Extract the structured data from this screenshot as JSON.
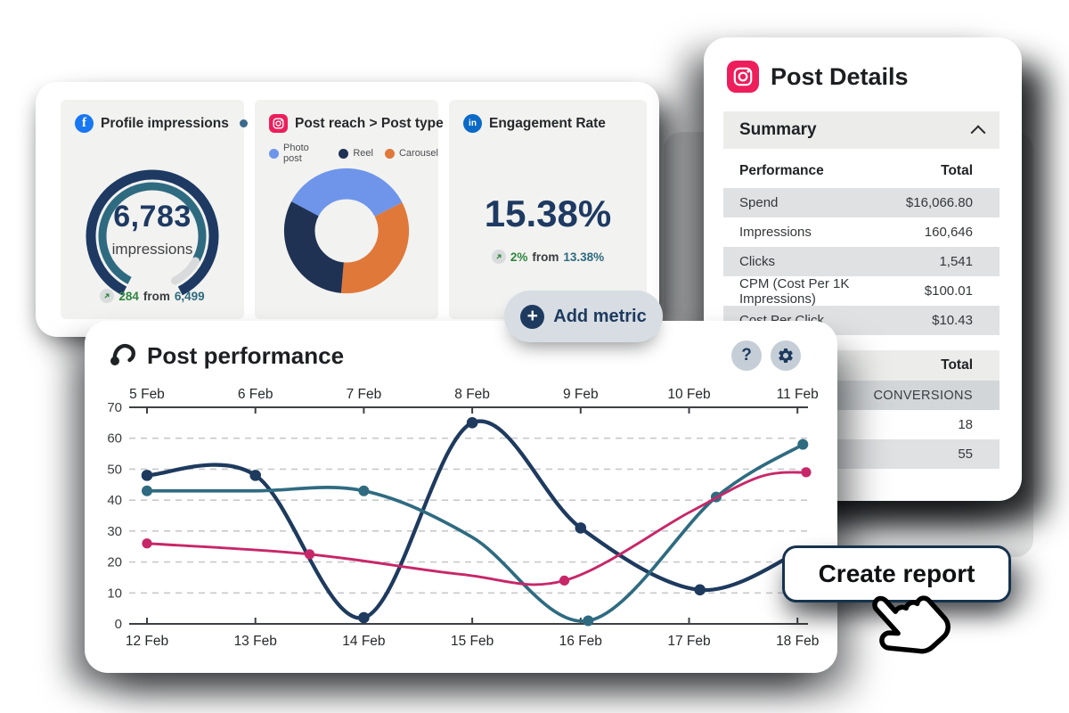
{
  "colors": {
    "navy": "#1E3A5E",
    "teal": "#2F6B80",
    "pink_line": "#C72769",
    "green": "#2F8540",
    "facebook_blue": "#1877F2",
    "linkedin_blue": "#0B69C7",
    "instagram_pink": "#ED1E5B",
    "donut_photo": "#6E95EA",
    "donut_reel": "#1F3254",
    "donut_carousel": "#E0783A",
    "card_gray": "#F2F2F0",
    "row_stripe": "#DFE1E3"
  },
  "icons": {
    "help": "?",
    "plus": "+"
  },
  "metrics": {
    "cards": [
      {
        "title": "Profile impressions",
        "network": "facebook",
        "value": "6,783",
        "unit": "impressions",
        "delta": {
          "amount": "284",
          "word": "from",
          "base": "6,499"
        }
      },
      {
        "title": "Post reach > Post type",
        "network": "instagram"
      },
      {
        "title": "Engagement Rate",
        "network": "linkedin",
        "value": "15.38%",
        "delta": {
          "amount": "2%",
          "word": "from",
          "base": "13.38%"
        }
      }
    ]
  },
  "add_metric": {
    "label": "Add metric"
  },
  "post_details": {
    "title": "Post Details",
    "summary_label": "Summary",
    "table": {
      "header": {
        "label": "Performance",
        "value": "Total"
      },
      "rows": [
        [
          "Spend",
          "$16,066.80"
        ],
        [
          "Impressions",
          "160,646"
        ],
        [
          "Clicks",
          "1,541"
        ],
        [
          "CPM (Cost Per 1K Impressions)",
          "$100.01"
        ],
        [
          "Cost Per Click",
          "$10.43"
        ]
      ]
    },
    "table2": {
      "header_value": "Total",
      "subheader": "CONVERSIONS",
      "rows": [
        "18",
        "55"
      ]
    }
  },
  "post_performance": {
    "title": "Post performance"
  },
  "create_report": {
    "label": "Create report"
  },
  "chart_data": [
    {
      "id": "post-performance",
      "type": "line",
      "title": "Post performance",
      "x_axis_top": [
        "5 Feb",
        "6 Feb",
        "7 Feb",
        "8 Feb",
        "9 Feb",
        "10 Feb",
        "11 Feb"
      ],
      "x_axis_bottom": [
        "12 Feb",
        "13 Feb",
        "14 Feb",
        "15 Feb",
        "16 Feb",
        "17 Feb",
        "18 Feb"
      ],
      "x_unit_days_from": "12 Feb",
      "ylim": [
        0,
        70
      ],
      "yticks": [
        0,
        10,
        20,
        30,
        40,
        50,
        60,
        70
      ],
      "grid": "horizontal-dashed",
      "legend": "none",
      "series": [
        {
          "name": "navy-series",
          "color": "#1E3A5E",
          "points": [
            [
              0,
              48
            ],
            [
              1,
              48
            ],
            [
              2,
              2
            ],
            [
              3,
              65
            ],
            [
              4,
              31
            ],
            [
              5.1,
              11
            ],
            [
              6.05,
              24
            ]
          ],
          "markers": [
            [
              0,
              48
            ],
            [
              1,
              48
            ],
            [
              2,
              2
            ],
            [
              3,
              65
            ],
            [
              4,
              31
            ],
            [
              5.1,
              11
            ]
          ]
        },
        {
          "name": "teal-series",
          "color": "#2F6B80",
          "points": [
            [
              0,
              43
            ],
            [
              1,
              43
            ],
            [
              2,
              43
            ],
            [
              3,
              28
            ],
            [
              4.07,
              1
            ],
            [
              5.25,
              41
            ],
            [
              6.05,
              58
            ]
          ],
          "markers": [
            [
              0,
              43
            ],
            [
              2,
              43
            ],
            [
              4.07,
              1
            ],
            [
              5.25,
              41
            ],
            [
              6.05,
              58
            ]
          ]
        },
        {
          "name": "pink-series",
          "color": "#C72769",
          "points": [
            [
              0,
              26
            ],
            [
              1.5,
              22.5
            ],
            [
              2.9,
              16
            ],
            [
              3.85,
              14
            ],
            [
              5,
              36
            ],
            [
              5.65,
              47.5
            ],
            [
              6.08,
              49
            ]
          ],
          "markers": [
            [
              0,
              26
            ],
            [
              1.5,
              22.5
            ],
            [
              3.85,
              14
            ],
            [
              6.08,
              49
            ]
          ]
        }
      ]
    },
    {
      "id": "post-reach-by-post-type",
      "type": "pie",
      "donut": true,
      "title": "Post reach > Post type",
      "start_deg": -62,
      "segments": [
        {
          "label": "Photo post",
          "percent": 35,
          "deg": 125,
          "color": "#6E95EA"
        },
        {
          "label": "Carousel",
          "percent": 34,
          "deg": 122,
          "color": "#E0783A"
        },
        {
          "label": "Reel",
          "percent": 31,
          "deg": 113,
          "color": "#1F3254"
        }
      ],
      "legend_order": [
        "Photo post",
        "Reel",
        "Carousel"
      ]
    },
    {
      "id": "profile-impressions-gauge",
      "type": "gauge",
      "current": 6783,
      "previous": 6499,
      "delta": 284,
      "start_deg": 207,
      "end_deg": 513,
      "progress_end_deg": 478,
      "outer_color": "#1E3A63",
      "progress_color": "#2F6B80",
      "rest_color": "#D8DADB"
    }
  ]
}
